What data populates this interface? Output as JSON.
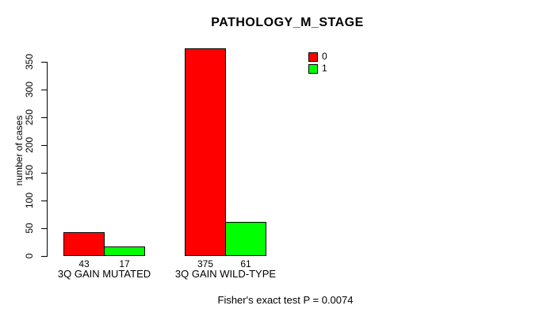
{
  "chart_data": {
    "type": "bar",
    "title": "PATHOLOGY_M_STAGE",
    "ylabel": "number of cases",
    "xlabel": "",
    "categories": [
      "3Q GAIN MUTATED",
      "3Q GAIN WILD-TYPE"
    ],
    "series": [
      {
        "name": "0",
        "color": "#ff0000",
        "values": [
          43,
          375
        ]
      },
      {
        "name": "1",
        "color": "#00ff00",
        "values": [
          17,
          61
        ]
      }
    ],
    "y_ticks": [
      0,
      50,
      100,
      150,
      200,
      250,
      300,
      350
    ],
    "ylim": [
      0,
      375
    ],
    "grid": false,
    "legend_position": "top-right",
    "annotation": "Fisher's exact test P = 0.0074",
    "colors": {
      "background": "#ffffff",
      "axis": "#000000",
      "text": "#000000",
      "bar_border": "#000000"
    }
  }
}
